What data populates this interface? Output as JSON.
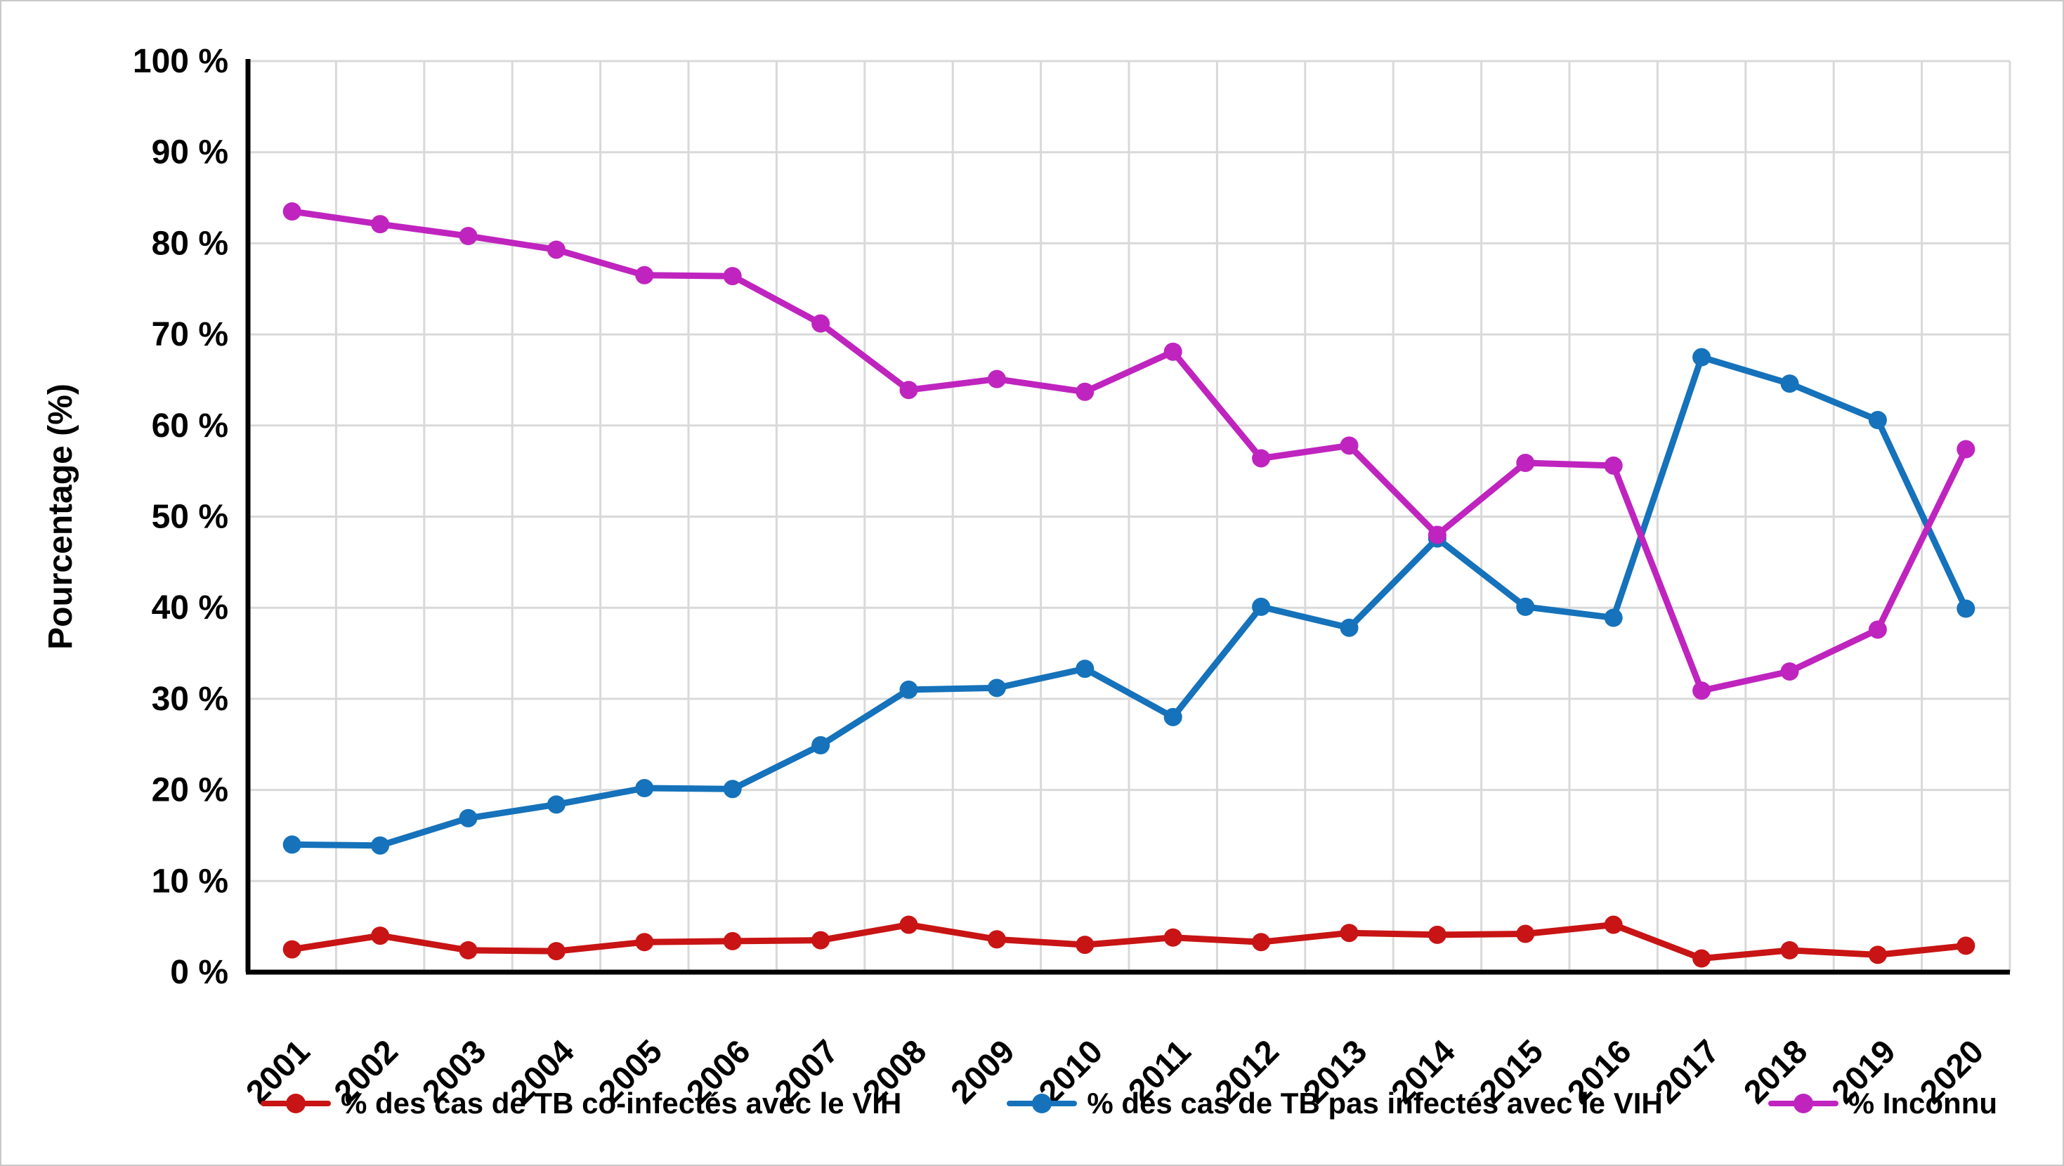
{
  "chart_data": {
    "type": "line",
    "title": "",
    "xlabel": "",
    "ylabel": "Pourcentage (%)",
    "x_categories": [
      "2001",
      "2002",
      "2003",
      "2004",
      "2005",
      "2006",
      "2007",
      "2008",
      "2009",
      "2010",
      "2011",
      "2012",
      "2013",
      "2014",
      "2015",
      "2016",
      "2017",
      "2018",
      "2019",
      "2020"
    ],
    "y_ticks": [
      "0 %",
      "10 %",
      "20 %",
      "30 %",
      "40 %",
      "50 %",
      "60 %",
      "70 %",
      "80 %",
      "90 %",
      "100 %"
    ],
    "ylim": [
      0,
      100
    ],
    "grid": "horizontal and vertical light-gray gridlines, plot bounded left and bottom by black axis lines",
    "legend_position": "bottom",
    "x_tick_rotation_deg": -45,
    "series": [
      {
        "name": "% des cas de TB co-infectés avec le VIH",
        "slug": "tb-co-infectes-vih",
        "color": "#C81414",
        "values": [
          2.5,
          4.0,
          2.4,
          2.3,
          3.3,
          3.4,
          3.5,
          5.2,
          3.6,
          3.0,
          3.8,
          3.3,
          4.3,
          4.1,
          4.2,
          5.2,
          1.5,
          2.4,
          1.9,
          2.9
        ]
      },
      {
        "name": "% des cas de TB pas infectés avec le VIH",
        "slug": "tb-pas-infectes-vih",
        "color": "#1572BB",
        "values": [
          14.0,
          13.9,
          16.9,
          18.4,
          20.2,
          20.1,
          24.9,
          31.0,
          31.2,
          33.3,
          28.0,
          40.1,
          37.8,
          47.6,
          40.1,
          38.9,
          67.5,
          64.6,
          60.6,
          39.9
        ]
      },
      {
        "name": "% Inconnu",
        "slug": "inconnu",
        "color": "#BF24BF",
        "values": [
          83.5,
          82.1,
          80.8,
          79.3,
          76.5,
          76.4,
          71.2,
          63.9,
          65.1,
          63.7,
          68.1,
          56.4,
          57.8,
          48.0,
          55.9,
          55.6,
          30.9,
          33.0,
          37.6,
          57.4
        ]
      }
    ]
  },
  "colors": {
    "background": "#ffffff",
    "frame_border": "#c9c9c9",
    "gridline": "#d9d9d9",
    "axis": "#000000",
    "text": "#000000"
  }
}
